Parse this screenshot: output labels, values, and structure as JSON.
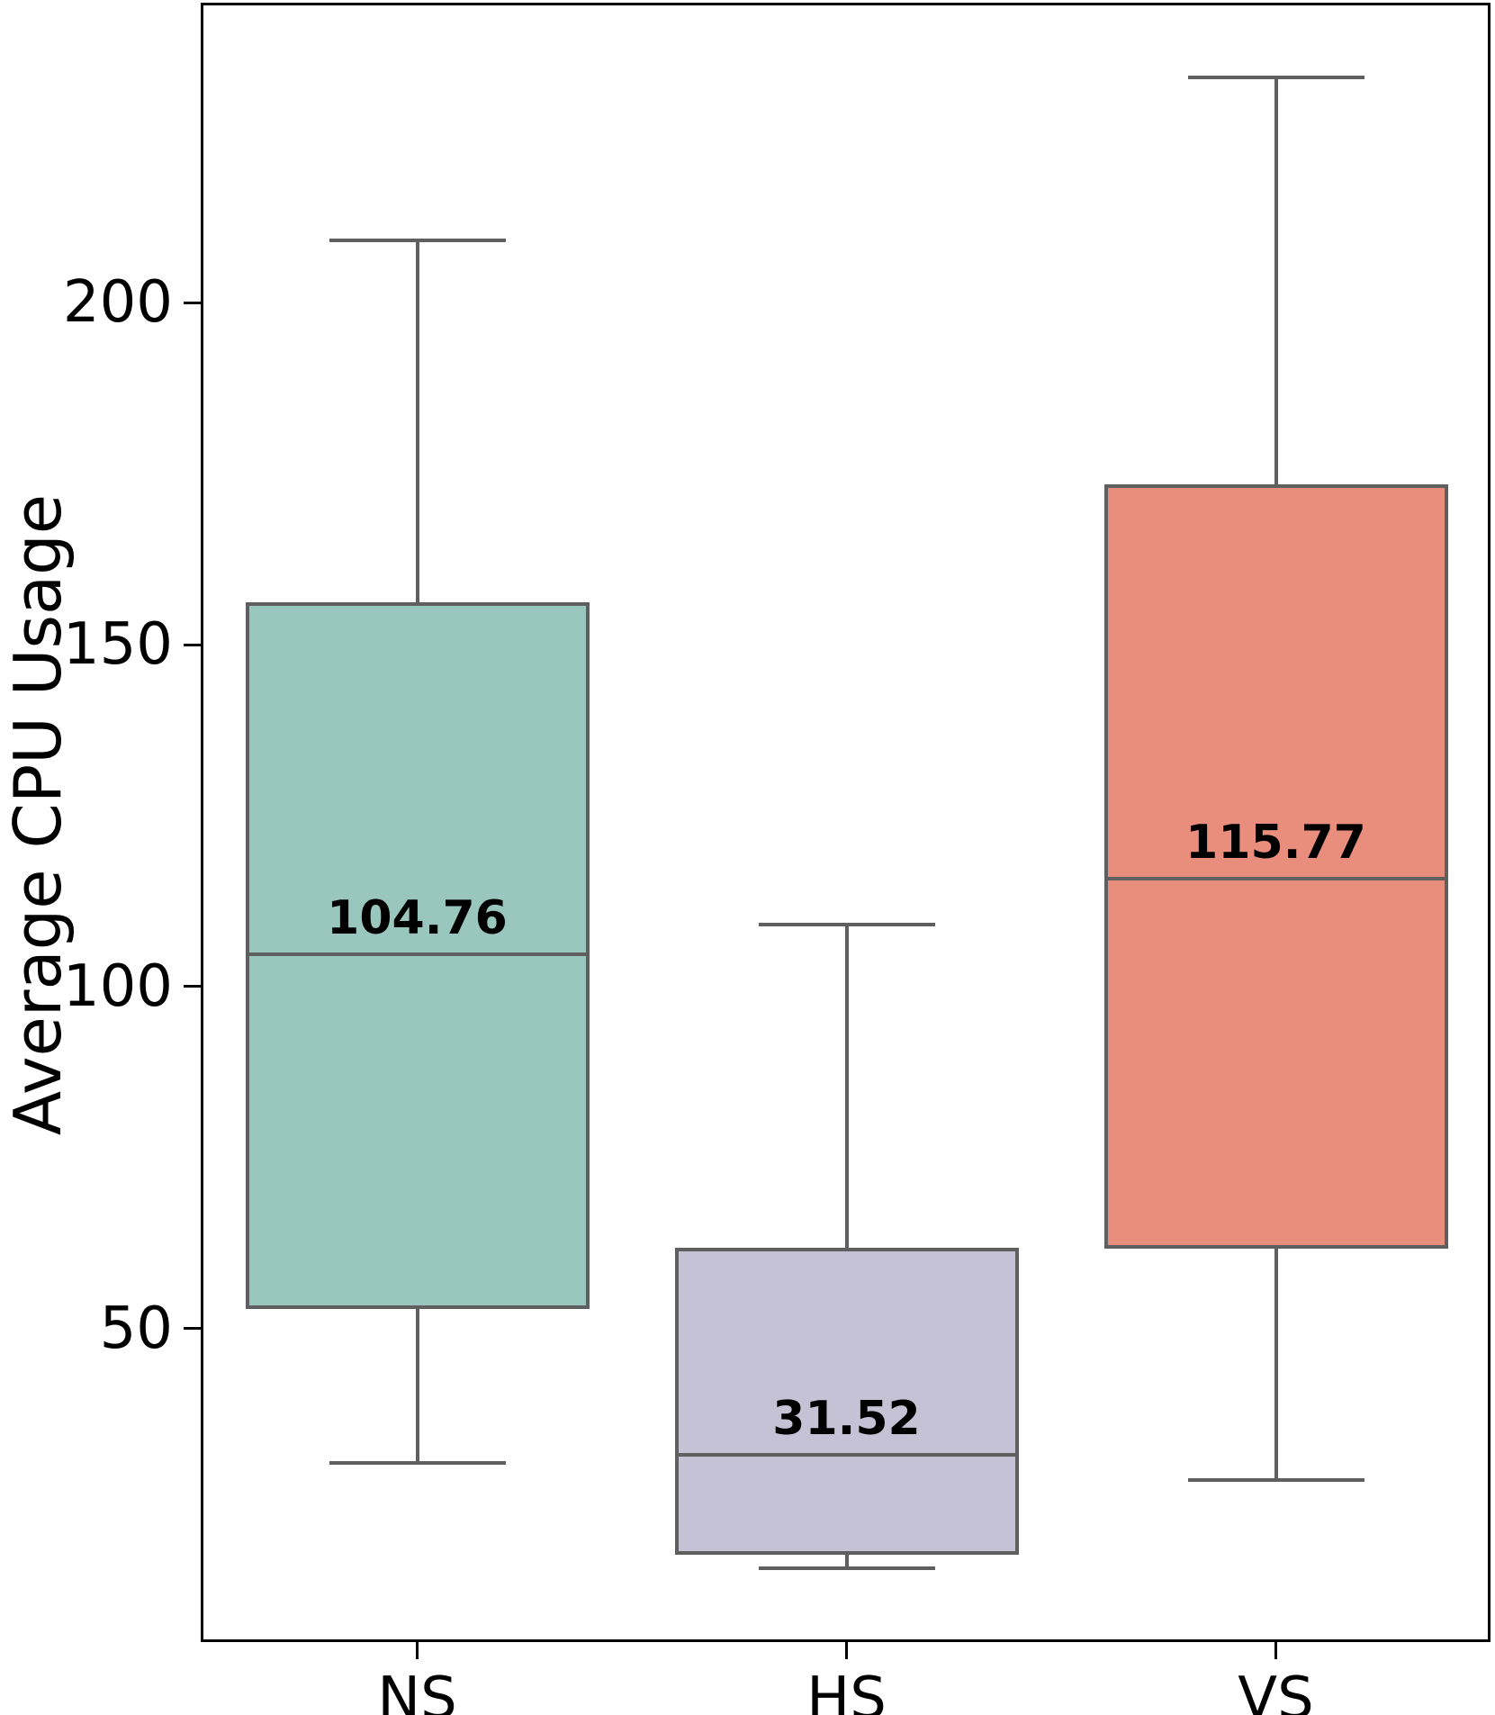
{
  "chart_data": {
    "type": "boxplot",
    "title": "",
    "xlabel": "",
    "ylabel": "Average CPU Usage",
    "ylim": [
      4.3,
      243.6
    ],
    "yticks": [
      50,
      100,
      150,
      200
    ],
    "grid": false,
    "legend": "none",
    "categories": [
      "NS",
      "HS",
      "VS"
    ],
    "series": [
      {
        "category": "NS",
        "whisker_low": 30.3,
        "q1": 52.9,
        "median": 104.76,
        "q3": 156.2,
        "whisker_high": 209.1,
        "median_label": "104.76",
        "fill_color": "#9ac7bd"
      },
      {
        "category": "HS",
        "whisker_low": 15.0,
        "q1": 17.0,
        "median": 31.52,
        "q3": 61.8,
        "whisker_high": 109.1,
        "median_label": "31.52",
        "fill_color": "#c5c2d5"
      },
      {
        "category": "VS",
        "whisker_low": 27.8,
        "q1": 61.7,
        "median": 115.77,
        "q3": 173.4,
        "whisker_high": 232.9,
        "median_label": "115.77",
        "fill_color": "#e98d7c"
      }
    ],
    "colors": {
      "box_edge": "#5f5f5f",
      "whisker": "#5f5f5f",
      "median_line": "#5f5f5f",
      "spine": "#000000",
      "text": "#000000",
      "background": "#ffffff"
    }
  }
}
